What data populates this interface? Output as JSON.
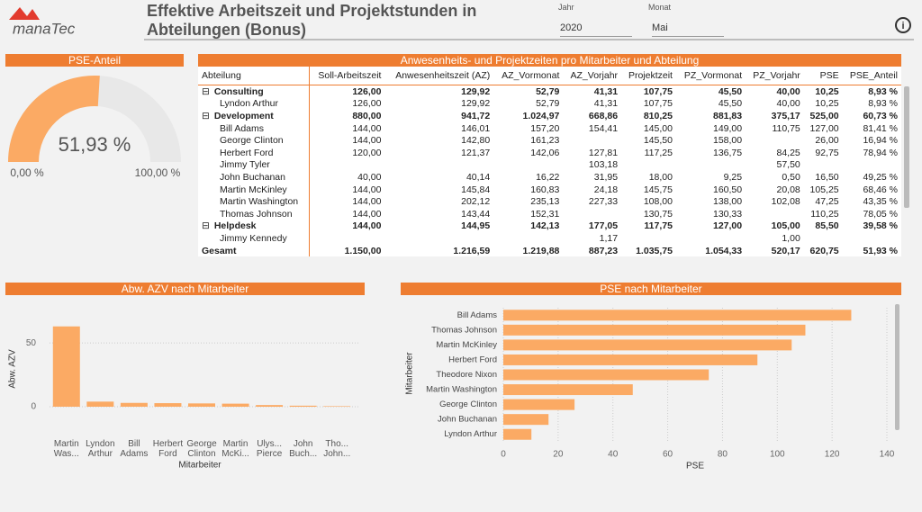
{
  "header": {
    "logo": "manaTec",
    "title": "Effektive Arbeitszeit und Projektstunden in Abteilungen (Bonus)",
    "filters": [
      {
        "label": "Jahr",
        "value": "2020"
      },
      {
        "label": "Monat",
        "value": "Mai"
      }
    ]
  },
  "table": {
    "title": "Anwesenheits- und Projektzeiten pro Mitarbeiter und Abteilung",
    "columns": [
      "Abteilung",
      "Soll-Arbeitszeit",
      "Anwesenheitszeit (AZ)",
      "AZ_Vormonat",
      "AZ_Vorjahr",
      "Projektzeit",
      "PZ_Vormonat",
      "PZ_Vorjahr",
      "PSE",
      "PSE_Anteil"
    ],
    "groups": [
      {
        "name": "Consulting",
        "cells": [
          "126,00",
          "129,92",
          "52,79",
          "41,31",
          "107,75",
          "45,50",
          "40,00",
          "10,25",
          "8,93 %"
        ],
        "members": [
          {
            "name": "Lyndon Arthur",
            "cells": [
              "126,00",
              "129,92",
              "52,79",
              "41,31",
              "107,75",
              "45,50",
              "40,00",
              "10,25",
              "8,93 %"
            ]
          }
        ]
      },
      {
        "name": "Development",
        "cells": [
          "880,00",
          "941,72",
          "1.024,97",
          "668,86",
          "810,25",
          "881,83",
          "375,17",
          "525,00",
          "60,73 %"
        ],
        "members": [
          {
            "name": "Bill Adams",
            "cells": [
              "144,00",
              "146,01",
              "157,20",
              "154,41",
              "145,00",
              "149,00",
              "110,75",
              "127,00",
              "81,41 %"
            ]
          },
          {
            "name": "George Clinton",
            "cells": [
              "144,00",
              "142,80",
              "161,23",
              null,
              "145,50",
              "158,00",
              null,
              "26,00",
              "16,94 %"
            ]
          },
          {
            "name": "Herbert Ford",
            "cells": [
              "120,00",
              "121,37",
              "142,06",
              "127,81",
              "117,25",
              "136,75",
              "84,25",
              "92,75",
              "78,94 %"
            ]
          },
          {
            "name": "Jimmy Tyler",
            "cells": [
              null,
              null,
              null,
              "103,18",
              null,
              null,
              "57,50",
              null,
              null
            ]
          },
          {
            "name": "John Buchanan",
            "cells": [
              "40,00",
              "40,14",
              "16,22",
              "31,95",
              "18,00",
              "9,25",
              "0,50",
              "16,50",
              "49,25 %"
            ]
          },
          {
            "name": "Martin McKinley",
            "cells": [
              "144,00",
              "145,84",
              "160,83",
              "24,18",
              "145,75",
              "160,50",
              "20,08",
              "105,25",
              "68,46 %"
            ]
          },
          {
            "name": "Martin Washington",
            "cells": [
              "144,00",
              "202,12",
              "235,13",
              "227,33",
              "108,00",
              "138,00",
              "102,08",
              "47,25",
              "43,35 %"
            ]
          },
          {
            "name": "Thomas Johnson",
            "cells": [
              "144,00",
              "143,44",
              "152,31",
              null,
              "130,75",
              "130,33",
              null,
              "110,25",
              "78,05 %"
            ]
          }
        ]
      },
      {
        "name": "Helpdesk",
        "cells": [
          "144,00",
          "144,95",
          "142,13",
          "177,05",
          "117,75",
          "127,00",
          "105,00",
          "85,50",
          "39,58 %"
        ],
        "members": [
          {
            "name": "Jimmy Kennedy",
            "cells": [
              null,
              null,
              null,
              "1,17",
              null,
              null,
              "1,00",
              null,
              null
            ]
          }
        ]
      }
    ],
    "total": {
      "name": "Gesamt",
      "cells": [
        "1.150,00",
        "1.216,59",
        "1.219,88",
        "887,23",
        "1.035,75",
        "1.054,33",
        "520,17",
        "620,75",
        "51,93 %"
      ]
    }
  },
  "chart_data": [
    {
      "type": "gauge",
      "title": "PSE-Anteil",
      "value": 51.93,
      "value_label": "51,93 %",
      "color": "#fbaa64",
      "ylim": [
        0,
        100
      ],
      "yticks": [
        {
          "value": 0,
          "label": "0,00 %"
        },
        {
          "value": 100,
          "label": "100,00 %"
        }
      ]
    },
    {
      "type": "bar",
      "title": "Abw. AZV nach Mitarbeiter",
      "x_label": "Mitarbeiter",
      "y_label": "Abw. AZV",
      "color": "#fbaa64",
      "categories": [
        "Martin Was...",
        "Lyndon Arthur",
        "Bill Adams",
        "Herbert Ford",
        "George Clinton",
        "Martin McKi...",
        "Ulys... Pierce",
        "John Buch...",
        "Tho... John..."
      ],
      "values": [
        63,
        4,
        3,
        2.8,
        2.6,
        2.4,
        1.3,
        0.8,
        0.4
      ],
      "ylim": [
        0,
        72
      ],
      "yticks": [
        0,
        50
      ],
      "grid": true
    },
    {
      "type": "hbar",
      "title": "PSE nach Mitarbeiter",
      "x_label": "PSE",
      "y_label": "Mitarbeiter",
      "color": "#fbaa64",
      "categories": [
        "Bill Adams",
        "Thomas Johnson",
        "Martin McKinley",
        "Herbert Ford",
        "Theodore Nixon",
        "Martin Washington",
        "George Clinton",
        "John Buchanan",
        "Lyndon Arthur"
      ],
      "values": [
        127,
        110.25,
        105.25,
        92.75,
        75,
        47.25,
        26,
        16.5,
        10.25
      ],
      "xlim": [
        0,
        140
      ],
      "xticks": [
        0,
        20,
        40,
        60,
        80,
        100,
        120,
        140
      ],
      "grid": true
    }
  ]
}
